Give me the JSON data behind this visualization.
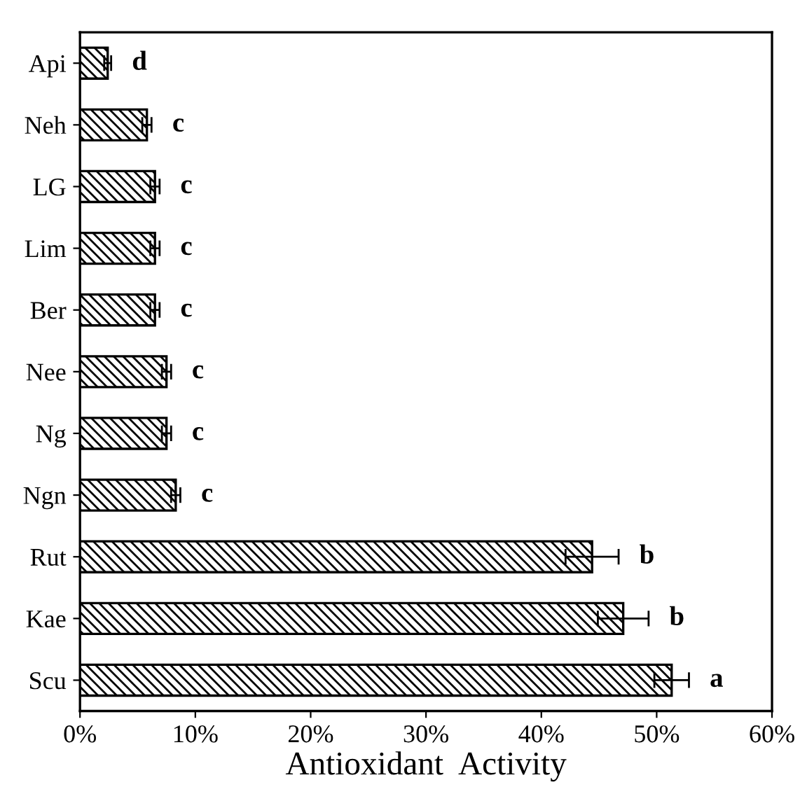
{
  "chart_data": {
    "type": "bar",
    "orientation": "horizontal",
    "xlabel": "Antioxidant  Activity",
    "categories": [
      "Api",
      "Neh",
      "LG",
      "Lim",
      "Ber",
      "Nee",
      "Ng",
      "Ngn",
      "Rut",
      "Kae",
      "Scu"
    ],
    "series": [
      {
        "color": "#000000",
        "values": [
          2.4,
          5.8,
          6.5,
          6.5,
          6.5,
          7.5,
          7.5,
          8.3,
          44.4,
          47.1,
          51.3
        ],
        "value_labels": [
          "d",
          "c",
          "c",
          "c",
          "c",
          "c",
          "c",
          "c",
          "b",
          "b",
          "a"
        ],
        "errors": [
          0.3,
          0.4,
          0.4,
          0.4,
          0.4,
          0.4,
          0.4,
          0.4,
          2.3,
          2.2,
          1.5
        ]
      }
    ],
    "xlim": [
      0,
      60
    ],
    "xticks": [
      {
        "value": 0,
        "label": "0%"
      },
      {
        "value": 10,
        "label": "10%"
      },
      {
        "value": 20,
        "label": "20%"
      },
      {
        "value": 30,
        "label": "30%"
      },
      {
        "value": 40,
        "label": "40%"
      },
      {
        "value": 50,
        "label": "50%"
      },
      {
        "value": 60,
        "label": "60%"
      }
    ],
    "grid": false
  }
}
